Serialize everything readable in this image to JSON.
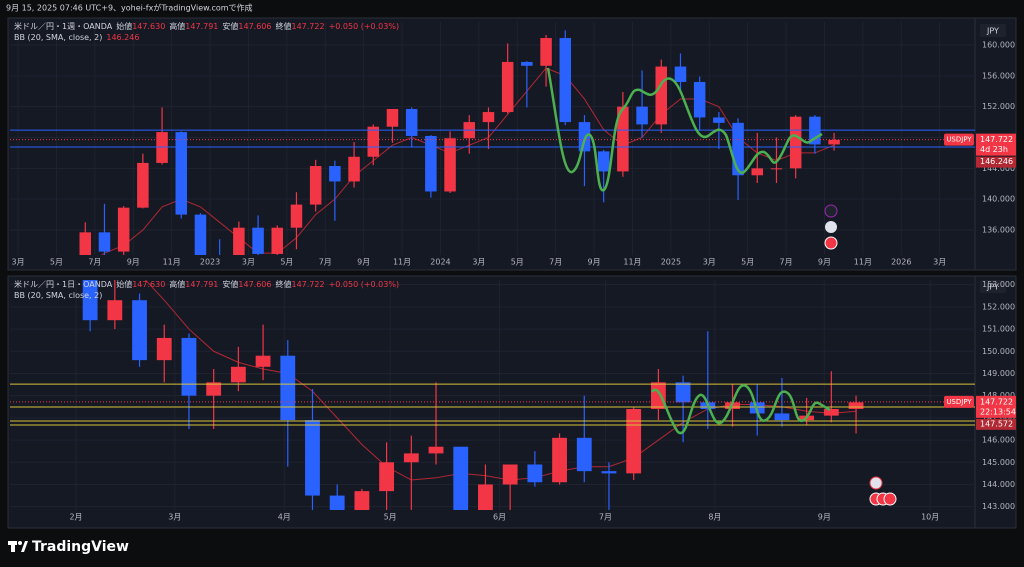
{
  "header": {
    "caption": "9月 15, 2025 07:46 UTC+9、yohei-fxがTradingView.comで作成"
  },
  "footer": {
    "logo": "TradingView"
  },
  "chart_data": [
    {
      "type": "candlestick",
      "symbol": "米ドル／円・1週・OANDA",
      "ohlc_labels": [
        {
          "name": "始値",
          "value": "147.630"
        },
        {
          "name": "高値",
          "value": "147.791"
        },
        {
          "name": "安値",
          "value": "147.606"
        },
        {
          "name": "終値",
          "value": "147.722"
        }
      ],
      "change": "+0.050 (+0.03%)",
      "indicator": "BB (20, SMA, close, 2)",
      "indicator_value": "146.246",
      "up_color": "#f23645",
      "down_color": "#2962ff",
      "bb_color": "#b22833",
      "grid": true,
      "xlim": [
        1.58,
        51.84
      ],
      "xticks": [
        {
          "value": 2,
          "label": "3月"
        },
        {
          "value": 4,
          "label": "5月"
        },
        {
          "value": 6,
          "label": "7月"
        },
        {
          "value": 8,
          "label": "9月"
        },
        {
          "value": 10,
          "label": "11月"
        },
        {
          "value": 12,
          "label": "2023"
        },
        {
          "value": 14,
          "label": "3月"
        },
        {
          "value": 16,
          "label": "5月"
        },
        {
          "value": 18,
          "label": "7月"
        },
        {
          "value": 20,
          "label": "9月"
        },
        {
          "value": 22,
          "label": "11月"
        },
        {
          "value": 24,
          "label": "2024"
        },
        {
          "value": 26,
          "label": "3月"
        },
        {
          "value": 28,
          "label": "5月"
        },
        {
          "value": 30,
          "label": "7月"
        },
        {
          "value": 32,
          "label": "9月"
        },
        {
          "value": 34,
          "label": "11月"
        },
        {
          "value": 36,
          "label": "2025"
        },
        {
          "value": 38,
          "label": "3月"
        },
        {
          "value": 40,
          "label": "5月"
        },
        {
          "value": 42,
          "label": "7月"
        },
        {
          "value": 44,
          "label": "9月"
        },
        {
          "value": 46,
          "label": "11月"
        },
        {
          "value": 48,
          "label": "2026"
        },
        {
          "value": 50,
          "label": "3月"
        }
      ],
      "ylim": [
        132.76,
        162.98
      ],
      "yticks": [
        {
          "value": 136,
          "label": "136.000"
        },
        {
          "value": 140,
          "label": "140.000"
        },
        {
          "value": 144,
          "label": "144.000"
        },
        {
          "value": 148,
          "label": "148.000"
        },
        {
          "value": 152,
          "label": "152.000"
        },
        {
          "value": 156,
          "label": "156.000"
        },
        {
          "value": 160,
          "label": "160.000"
        }
      ],
      "x": [
        5.5,
        6.5,
        7.5,
        8.5,
        9.5,
        10.5,
        11.5,
        12.5,
        13.5,
        14.5,
        15.5,
        16.5,
        17.5,
        18.5,
        19.5,
        20.5,
        21.5,
        22.5,
        23.5,
        24.5,
        25.5,
        26.5,
        27.5,
        28.5,
        29.5,
        30.5,
        31.5,
        32.5,
        33.5,
        34.5,
        35.5,
        36.5,
        37.5,
        38.5,
        39.5,
        40.5,
        41.5,
        42.5,
        43.5,
        44.5
      ],
      "open": [
        128.7,
        135.7,
        133.2,
        138.9,
        144.7,
        148.7,
        138.0,
        131.1,
        130.1,
        136.3,
        132.9,
        136.3,
        139.3,
        144.3,
        142.3,
        145.5,
        149.4,
        151.7,
        148.2,
        141.0,
        147.9,
        150.0,
        151.3,
        157.8,
        157.3,
        160.9,
        150.0,
        146.2,
        143.6,
        152.0,
        149.7,
        157.2,
        155.2,
        150.6,
        149.9,
        143.1,
        144.0,
        144.0,
        150.7,
        147.1
      ],
      "high": [
        137.0,
        139.4,
        139.1,
        145.9,
        151.9,
        148.8,
        138.2,
        134.8,
        137.1,
        137.9,
        136.6,
        140.9,
        145.1,
        145.0,
        147.4,
        149.7,
        151.7,
        151.9,
        148.3,
        148.8,
        150.9,
        151.9,
        160.2,
        157.9,
        161.3,
        161.9,
        150.9,
        146.4,
        153.9,
        156.7,
        158.1,
        158.9,
        155.9,
        151.3,
        150.5,
        148.6,
        148.0,
        150.9,
        150.9,
        148.6
      ],
      "low": [
        128.6,
        132.5,
        130.4,
        138.8,
        144.5,
        137.5,
        130.6,
        127.2,
        128.1,
        129.6,
        130.6,
        133.5,
        138.4,
        137.2,
        141.5,
        144.4,
        147.3,
        146.7,
        140.2,
        140.8,
        145.9,
        146.5,
        151.1,
        151.9,
        154.6,
        149.6,
        141.7,
        139.6,
        142.9,
        148.0,
        148.6,
        153.7,
        148.9,
        146.5,
        139.9,
        142.1,
        142.1,
        142.7,
        145.9,
        146.3
      ],
      "close": [
        135.7,
        133.2,
        138.9,
        144.7,
        148.7,
        138.0,
        131.1,
        130.1,
        136.3,
        132.9,
        136.3,
        139.3,
        144.3,
        142.3,
        145.5,
        149.4,
        151.7,
        148.2,
        141.0,
        147.9,
        150.0,
        151.3,
        157.8,
        157.3,
        160.9,
        150.0,
        146.2,
        143.6,
        152.0,
        149.7,
        157.2,
        155.2,
        150.6,
        149.9,
        143.1,
        144.0,
        144.0,
        150.7,
        147.1,
        147.7
      ],
      "bb_basis": [
        131,
        133,
        134,
        136,
        139,
        140,
        139,
        137,
        135,
        133,
        133,
        135,
        138,
        140,
        143,
        145,
        147,
        148,
        147,
        146,
        147,
        148,
        151,
        154,
        157,
        156,
        153,
        149,
        147,
        148,
        151,
        153,
        153,
        152,
        148,
        146,
        145,
        146,
        146,
        147
      ],
      "levels": [
        148.95,
        146.76
      ],
      "level_color": "#2962ff",
      "symbol_tag": "USDJPY",
      "last_price": 147.722,
      "countdown": "4d 23h",
      "tag2": 146.246
    },
    {
      "type": "candlestick",
      "symbol": "米ドル／円・1日・OANDA",
      "ohlc_labels": [
        {
          "name": "始値",
          "value": "147.630"
        },
        {
          "name": "高値",
          "value": "147.791"
        },
        {
          "name": "安値",
          "value": "147.606"
        },
        {
          "name": "終値",
          "value": "147.722"
        }
      ],
      "change": "+0.050 (+0.03%)",
      "indicator": "BB (20, SMA, close, 2)",
      "up_color": "#f23645",
      "down_color": "#2962ff",
      "bb_color": "#b22833",
      "grid": true,
      "xlim": [
        12.3,
        285.7
      ],
      "xticks": [
        {
          "value": 31,
          "label": "2月"
        },
        {
          "value": 59,
          "label": "3月"
        },
        {
          "value": 90,
          "label": "4月"
        },
        {
          "value": 120,
          "label": "5月"
        },
        {
          "value": 151,
          "label": "6月"
        },
        {
          "value": 181,
          "label": "7月"
        },
        {
          "value": 212,
          "label": "8月"
        },
        {
          "value": 243,
          "label": "9月"
        },
        {
          "value": 273,
          "label": "10月"
        }
      ],
      "ylim": [
        142.85,
        153.21
      ],
      "yticks": [
        {
          "value": 143,
          "label": "143.000"
        },
        {
          "value": 144,
          "label": "144.000"
        },
        {
          "value": 145,
          "label": "145.000"
        },
        {
          "value": 146,
          "label": "146.000"
        },
        {
          "value": 147,
          "label": "147.000"
        },
        {
          "value": 148,
          "label": "148.000"
        },
        {
          "value": 149,
          "label": "149.000"
        },
        {
          "value": 150,
          "label": "150.000"
        },
        {
          "value": 151,
          "label": "151.000"
        },
        {
          "value": 152,
          "label": "152.000"
        },
        {
          "value": 153,
          "label": "153.000"
        }
      ],
      "x": [
        21,
        28,
        35,
        42,
        49,
        56,
        63,
        70,
        77,
        84,
        91,
        98,
        105,
        112,
        119,
        126,
        133,
        140,
        147,
        154,
        161,
        168,
        175,
        182,
        189,
        196,
        203,
        210,
        217,
        224,
        231,
        238,
        245,
        252
      ],
      "open": [
        156.3,
        156.0,
        155.2,
        151.4,
        152.3,
        149.6,
        150.6,
        148.0,
        148.6,
        149.3,
        149.8,
        146.9,
        143.5,
        142.2,
        143.7,
        145.0,
        145.4,
        145.7,
        142.6,
        144.0,
        144.9,
        144.1,
        146.1,
        144.6,
        144.5,
        147.4,
        148.6,
        147.7,
        147.4,
        147.7,
        147.2,
        146.9,
        147.1,
        147.4
      ],
      "high": [
        156.8,
        156.2,
        155.9,
        154.8,
        152.6,
        151.2,
        150.8,
        149.2,
        150.2,
        151.2,
        150.5,
        148.3,
        144.0,
        143.8,
        145.9,
        146.2,
        148.6,
        145.7,
        144.9,
        144.9,
        145.5,
        146.3,
        148.0,
        145.0,
        147.5,
        149.2,
        148.9,
        150.9,
        148.5,
        148.5,
        148.8,
        147.9,
        149.1,
        148.0
      ],
      "low": [
        154.7,
        153.8,
        150.9,
        151.0,
        149.3,
        148.6,
        146.5,
        146.5,
        148.2,
        148.7,
        144.8,
        142.1,
        141.6,
        139.9,
        141.9,
        142.4,
        144.9,
        142.4,
        142.1,
        142.4,
        143.9,
        144.0,
        144.1,
        142.7,
        144.2,
        146.9,
        145.9,
        146.5,
        146.6,
        146.2,
        146.6,
        146.7,
        146.8,
        146.3
      ],
      "close": [
        156.0,
        155.2,
        151.4,
        152.3,
        149.6,
        150.6,
        148.0,
        148.6,
        149.3,
        149.8,
        146.9,
        143.5,
        142.2,
        143.7,
        145.0,
        145.4,
        145.7,
        142.6,
        144.0,
        144.9,
        144.1,
        146.1,
        144.6,
        144.5,
        147.4,
        148.6,
        147.7,
        147.4,
        147.7,
        147.2,
        146.9,
        147.1,
        147.4,
        147.7
      ],
      "bb_basis": [
        157,
        156.5,
        155.5,
        154.5,
        153.5,
        152.3,
        151,
        150,
        149.5,
        149.2,
        149,
        148.2,
        147,
        145.8,
        144.8,
        144.2,
        144.3,
        144.5,
        144.4,
        144.2,
        144.3,
        144.6,
        144.8,
        144.8,
        145.2,
        146,
        146.8,
        147.4,
        147.6,
        147.6,
        147.5,
        147.3,
        147.2,
        147.3
      ],
      "levels": [
        148.52,
        147.49,
        146.86,
        146.68
      ],
      "level_color": "#d8c23a",
      "symbol_tag": "USDJPY",
      "last_price": 147.722,
      "countdown": "22:13:54",
      "tag2": 147.572
    }
  ]
}
